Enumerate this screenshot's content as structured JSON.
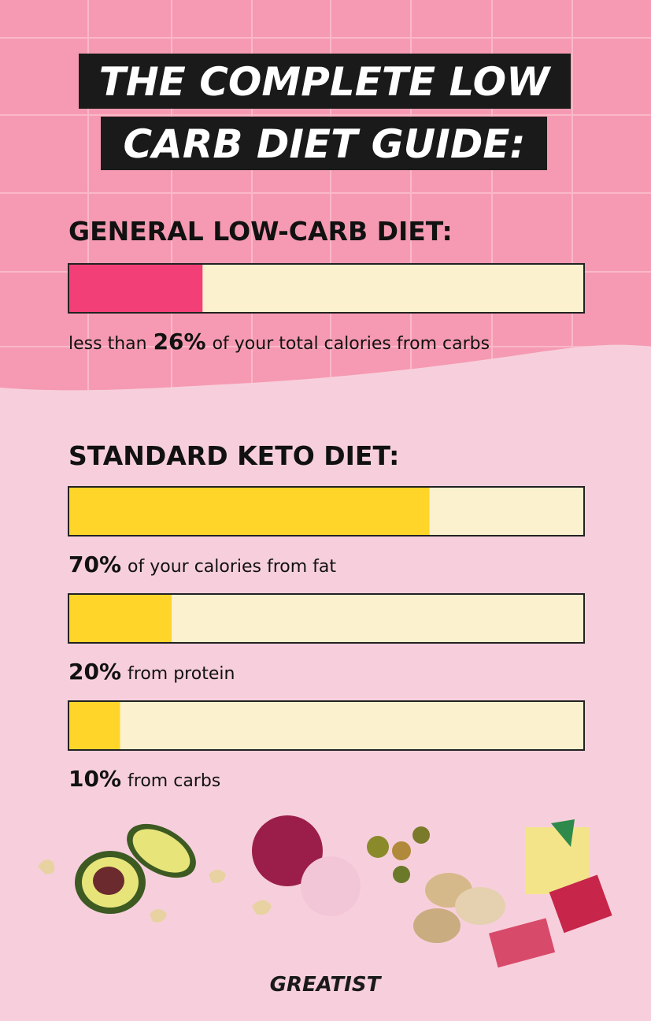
{
  "title_lines": [
    "THE COMPLETE LOW",
    "CARB DIET GUIDE:"
  ],
  "xlim": [
    0,
    100
  ],
  "sections": [
    {
      "heading": "GENERAL LOW-CARB DIET:",
      "color": "#f33f77",
      "bars": [
        {
          "value": 26,
          "value_label": "26%",
          "before": "less than",
          "after": "of your total calories from carbs"
        }
      ]
    },
    {
      "heading": "STANDARD KETO DIET:",
      "color": "#ffd52a",
      "bars": [
        {
          "value": 70,
          "value_label": "70%",
          "after": "of your calories from fat"
        },
        {
          "value": 20,
          "value_label": "20%",
          "after": "from protein"
        },
        {
          "value": 10,
          "value_label": "10%",
          "after": "from carbs"
        }
      ]
    }
  ],
  "logo": "GREATIST"
}
